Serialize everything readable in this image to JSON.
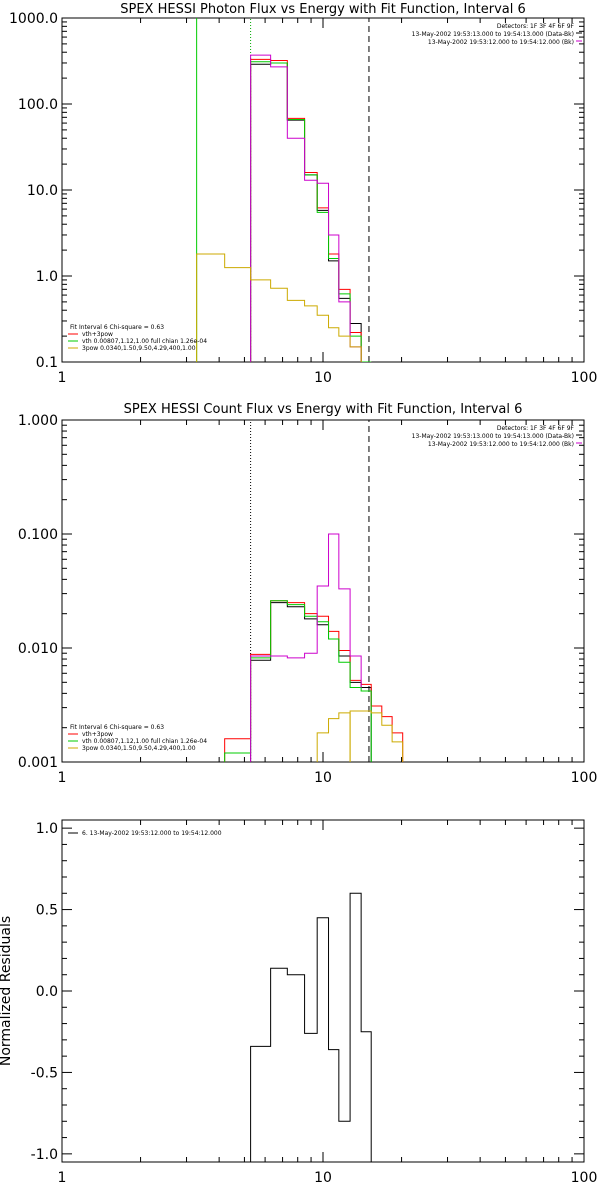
{
  "chart_data": [
    {
      "type": "line",
      "title": "SPEX HESSI Photon Flux vs Energy with Fit Function, Interval 6",
      "xscale": "log",
      "yscale": "log",
      "xlim": [
        1,
        100
      ],
      "ylim": [
        0.1,
        1000
      ],
      "x_ticks": [
        {
          "v": 1,
          "label": "1"
        },
        {
          "v": 10,
          "label": "10"
        },
        {
          "v": 100,
          "label": "100"
        }
      ],
      "y_ticks": [
        {
          "v": 0.1,
          "label": "0.1"
        },
        {
          "v": 1,
          "label": "1.0"
        },
        {
          "v": 10,
          "label": "10.0"
        },
        {
          "v": 100,
          "label": "100.0"
        },
        {
          "v": 1000,
          "label": "1000.0"
        }
      ],
      "top_right": [
        "Detectors: 1F 3F 4F 6F 9F",
        "13-May-2002 19:53:13.000 to 19:54:13.000 (Data-Bk)",
        "13-May-2002 19:53:12.000 to 19:54:12.000 (Bk)"
      ],
      "legend": [
        "Fit Interval 6   Chi-square = 0.63",
        "vth+3pow",
        "vth 0.00807,1.12,1.00  full chian 1.26e-04",
        "3pow 0.0340,1.50,9.50,4.29,400,1.00"
      ],
      "vlines": [
        {
          "x": 3.28,
          "color": "#00cc00",
          "style": "solid",
          "y_top": 1000
        },
        {
          "x": 5.28,
          "color": "#00aa00",
          "style": "dotted",
          "y_top": 1000
        },
        {
          "x": 5.28,
          "color": "#cc00cc",
          "style": "dashed",
          "y_top": 300
        },
        {
          "x": 15.0,
          "color": "#000000",
          "style": "dashed",
          "y_top": 1000
        }
      ],
      "series": [
        {
          "color": "#000000",
          "edges": [
            5.28,
            6.3,
            7.3,
            8.5,
            9.5,
            10.5,
            11.5,
            12.7,
            14.0,
            15.3
          ],
          "values": [
            290,
            300,
            65,
            15,
            5.8,
            1.5,
            0.55,
            0.28,
            0.1
          ]
        },
        {
          "color": "#ff0000",
          "edges": [
            5.28,
            6.3,
            7.3,
            8.5,
            9.5,
            10.5,
            11.5,
            12.7,
            14.0,
            15.3
          ],
          "values": [
            330,
            320,
            68,
            16,
            6.2,
            1.8,
            0.7,
            0.22,
            0.1
          ]
        },
        {
          "color": "#00cc00",
          "edges": [
            5.28,
            6.3,
            7.3,
            8.5,
            9.5,
            10.5,
            11.5,
            12.7,
            14.0,
            15.3
          ],
          "values": [
            310,
            300,
            66,
            15,
            5.5,
            1.6,
            0.62,
            0.2,
            0.1
          ]
        },
        {
          "color": "#cc00cc",
          "edges": [
            5.28,
            6.3,
            7.3,
            8.5,
            9.5,
            10.5,
            11.5,
            12.7,
            14.0
          ],
          "values": [
            370,
            270,
            40,
            13,
            12,
            3.0,
            0.5,
            0.15
          ]
        },
        {
          "color": "#ccaa00",
          "edges": [
            3.28,
            4.2,
            5.28,
            6.3,
            7.3,
            8.5,
            9.5,
            10.5,
            11.5,
            12.7,
            14.0
          ],
          "values": [
            1.8,
            1.25,
            0.9,
            0.72,
            0.52,
            0.45,
            0.35,
            0.25,
            0.2,
            0.15
          ]
        }
      ]
    },
    {
      "type": "line",
      "title": "SPEX HESSI Count Flux vs Energy with Fit Function, Interval 6",
      "xscale": "log",
      "yscale": "log",
      "xlim": [
        1,
        100
      ],
      "ylim": [
        0.001,
        1
      ],
      "x_ticks": [
        {
          "v": 1,
          "label": "1"
        },
        {
          "v": 10,
          "label": "10"
        },
        {
          "v": 100,
          "label": "100"
        }
      ],
      "y_ticks": [
        {
          "v": 0.001,
          "label": "0.001"
        },
        {
          "v": 0.01,
          "label": "0.010"
        },
        {
          "v": 0.1,
          "label": "0.100"
        },
        {
          "v": 1,
          "label": "1.000"
        }
      ],
      "top_right": [
        "Detectors: 1F 3F 4F 6F 9F",
        "13-May-2002 19:53:13.000 to 19:54:13.000 (Data-Bk)",
        "13-May-2002 19:53:12.000 to 19:54:12.000 (Bk)"
      ],
      "legend": [
        "Fit Interval 6   Chi-square = 0.63",
        "vth+3pow",
        "vth 0.00807,1.12,1.00  full chian 1.26e-04",
        "3pow 0.0340,1.50,9.50,4.29,400,1.00"
      ],
      "vlines": [
        {
          "x": 5.28,
          "color": "#000000",
          "style": "dotted",
          "y_top": 1
        },
        {
          "x": 15.0,
          "color": "#000000",
          "style": "dashed",
          "y_top": 1
        }
      ],
      "series": [
        {
          "color": "#000000",
          "edges": [
            5.28,
            6.3,
            7.3,
            8.5,
            9.5,
            10.5,
            11.5,
            12.7,
            14.0,
            15.3
          ],
          "values": [
            0.0078,
            0.025,
            0.023,
            0.018,
            0.016,
            0.012,
            0.0085,
            0.005,
            0.0045
          ]
        },
        {
          "color": "#ff0000",
          "edges": [
            4.2,
            5.28,
            6.3,
            7.3,
            8.5,
            9.5,
            10.5,
            11.5,
            12.7,
            14.0,
            15.3,
            16.8,
            18.4,
            20.2
          ],
          "values": [
            0.0016,
            0.0088,
            0.026,
            0.025,
            0.02,
            0.019,
            0.014,
            0.0095,
            0.0052,
            0.0048,
            0.0031,
            0.0025,
            0.0018
          ]
        },
        {
          "color": "#00cc00",
          "edges": [
            4.2,
            5.28,
            6.3,
            7.3,
            8.5,
            9.5,
            10.5,
            11.5,
            12.7,
            14.0,
            15.3
          ],
          "values": [
            0.0012,
            0.0082,
            0.026,
            0.024,
            0.019,
            0.017,
            0.012,
            0.0075,
            0.0045,
            0.0042
          ]
        },
        {
          "color": "#cc00cc",
          "edges": [
            5.28,
            6.3,
            7.3,
            8.5,
            9.5,
            10.5,
            11.5,
            12.7,
            14.0
          ],
          "values": [
            0.0085,
            0.0085,
            0.0082,
            0.009,
            0.035,
            0.1,
            0.033,
            0.0085,
            0.0045
          ]
        },
        {
          "color": "#ccaa00",
          "edges": [
            12.7,
            14.0,
            15.3,
            16.8,
            18.4,
            20.2
          ],
          "values": [
            0.0028,
            0.0028,
            0.0027,
            0.0021,
            0.0015
          ]
        },
        {
          "color": "#ccaa00",
          "edges": [
            9.5,
            10.5,
            11.5,
            12.7
          ],
          "values": [
            0.0018,
            0.0024,
            0.0027
          ]
        }
      ]
    },
    {
      "type": "line",
      "title": "",
      "ylabel": "Normalized Residuals",
      "xscale": "log",
      "yscale": "linear",
      "xlim": [
        1,
        100
      ],
      "ylim": [
        -1.05,
        1.05
      ],
      "x_ticks": [
        {
          "v": 1,
          "label": "1"
        },
        {
          "v": 10,
          "label": "10"
        },
        {
          "v": 100,
          "label": "100"
        }
      ],
      "y_ticks": [
        {
          "v": -1.0,
          "label": "-1.0"
        },
        {
          "v": -0.5,
          "label": "-0.5"
        },
        {
          "v": 0.0,
          "label": "0.0"
        },
        {
          "v": 0.5,
          "label": "0.5"
        },
        {
          "v": 1.0,
          "label": "1.0"
        }
      ],
      "legend": [
        "6. 13-May-2002 19:53:12.000 to 19:54:12.000"
      ],
      "series": [
        {
          "color": "#000000",
          "edges": [
            5.28,
            6.3,
            7.3,
            8.5,
            9.5,
            10.5,
            11.5,
            12.7,
            14.0,
            15.3
          ],
          "values": [
            -0.34,
            0.14,
            0.1,
            -0.26,
            0.45,
            -0.36,
            -0.8,
            0.6,
            -0.25
          ]
        }
      ]
    }
  ]
}
